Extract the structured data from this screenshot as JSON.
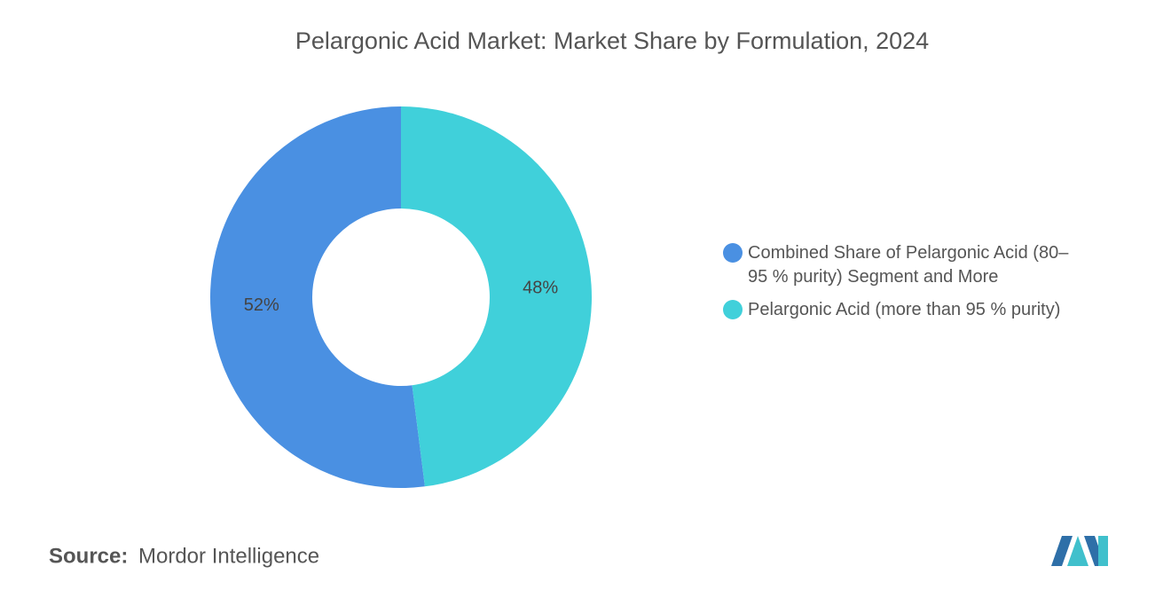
{
  "chart_data": {
    "type": "donut",
    "title": "Pelargonic Acid Market: Market Share by Formulation, 2024",
    "categories": [
      "Combined Share of Pelargonic Acid (80–95 % purity) Segment and More",
      "Pelargonic Acid (more than 95 % purity)"
    ],
    "values": [
      52,
      48
    ],
    "value_labels": [
      "52%",
      "48%"
    ],
    "colors": [
      "#4a90e2",
      "#40d0da"
    ],
    "legend": "right",
    "source_label": "Source:",
    "source": "Mordor Intelligence"
  }
}
